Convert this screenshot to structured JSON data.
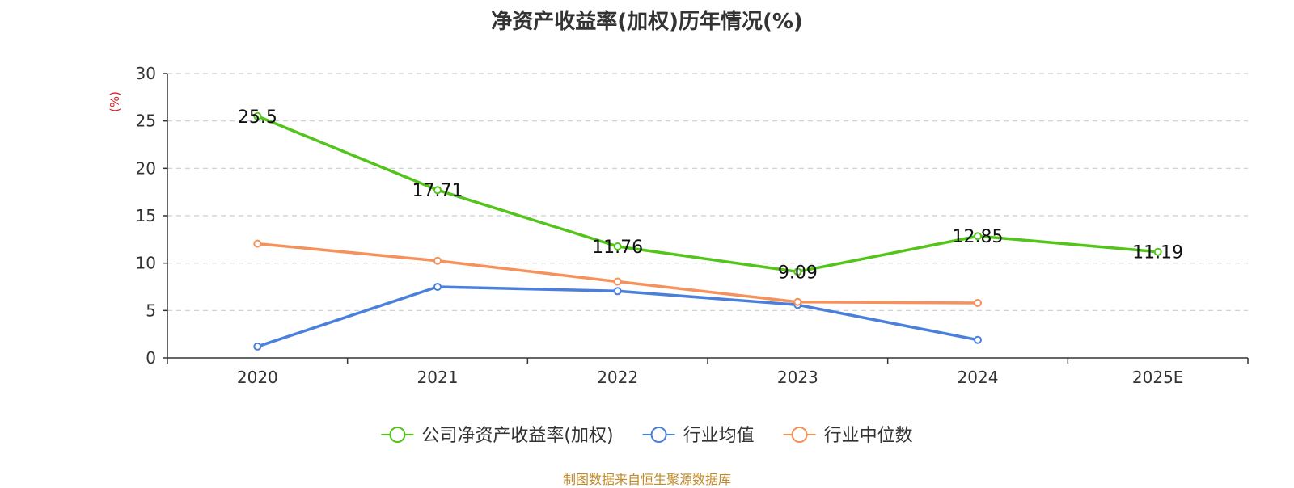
{
  "chart_data": {
    "type": "line",
    "title": "净资产收益率(加权)历年情况(%)",
    "ylabel": "(%)",
    "xlabel": "",
    "categories": [
      "2020",
      "2021",
      "2022",
      "2023",
      "2024",
      "2025E"
    ],
    "ylim": [
      0,
      30
    ],
    "yticks": [
      0,
      5,
      10,
      15,
      20,
      25,
      30
    ],
    "grid": true,
    "legend_position": "bottom-center",
    "series": [
      {
        "name": "公司净资产收益率(加权)",
        "color": "#52c41a",
        "values": [
          25.5,
          17.71,
          11.76,
          9.09,
          12.85,
          11.19
        ],
        "labels": [
          "25.5",
          "17.71",
          "11.76",
          "9.09",
          "12.85",
          "11.19"
        ],
        "show_labels": true
      },
      {
        "name": "行业均值",
        "color": "#4a7fdc",
        "values": [
          1.2,
          7.5,
          7.05,
          5.6,
          1.9,
          null
        ],
        "show_labels": false
      },
      {
        "name": "行业中位数",
        "color": "#f5915a",
        "values": [
          12.05,
          10.25,
          8.05,
          5.9,
          5.8,
          null
        ],
        "show_labels": false
      }
    ],
    "ylabel_color": "#e02020",
    "axis_color": "#333333",
    "grid_color": "#cccccc"
  },
  "source_note": "制图数据来自恒生聚源数据库"
}
